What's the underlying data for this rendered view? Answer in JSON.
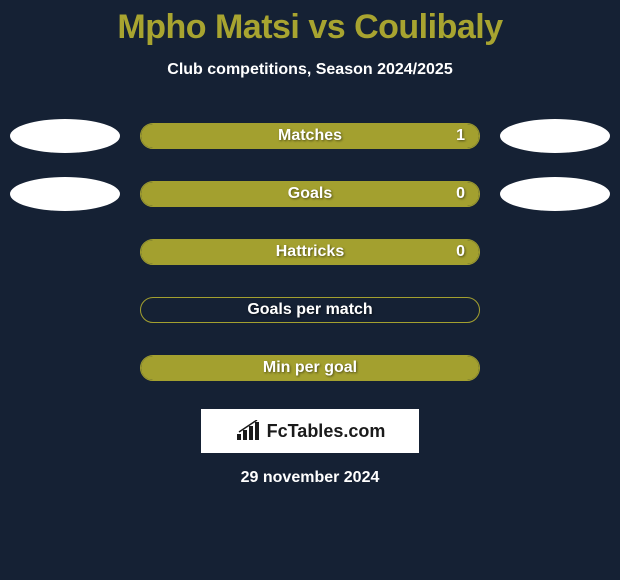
{
  "title": "Mpho Matsi vs Coulibaly",
  "subtitle": "Club competitions, Season 2024/2025",
  "colors": {
    "background": "#152134",
    "accent": "#a3a02f",
    "title_color": "#a8a430",
    "text_white": "#ffffff",
    "ellipse_color": "#ffffff"
  },
  "stat_bars": [
    {
      "label": "Matches",
      "value": "1",
      "fill_percent": 100,
      "show_left_ellipse": true,
      "show_right_ellipse": true
    },
    {
      "label": "Goals",
      "value": "0",
      "fill_percent": 100,
      "show_left_ellipse": true,
      "show_right_ellipse": true
    },
    {
      "label": "Hattricks",
      "value": "0",
      "fill_percent": 100,
      "show_left_ellipse": false,
      "show_right_ellipse": false
    },
    {
      "label": "Goals per match",
      "value": "",
      "fill_percent": 0,
      "show_left_ellipse": false,
      "show_right_ellipse": false
    },
    {
      "label": "Min per goal",
      "value": "",
      "fill_percent": 100,
      "show_left_ellipse": false,
      "show_right_ellipse": false
    }
  ],
  "logo": {
    "text": "FcTables.com"
  },
  "date": "29 november 2024"
}
